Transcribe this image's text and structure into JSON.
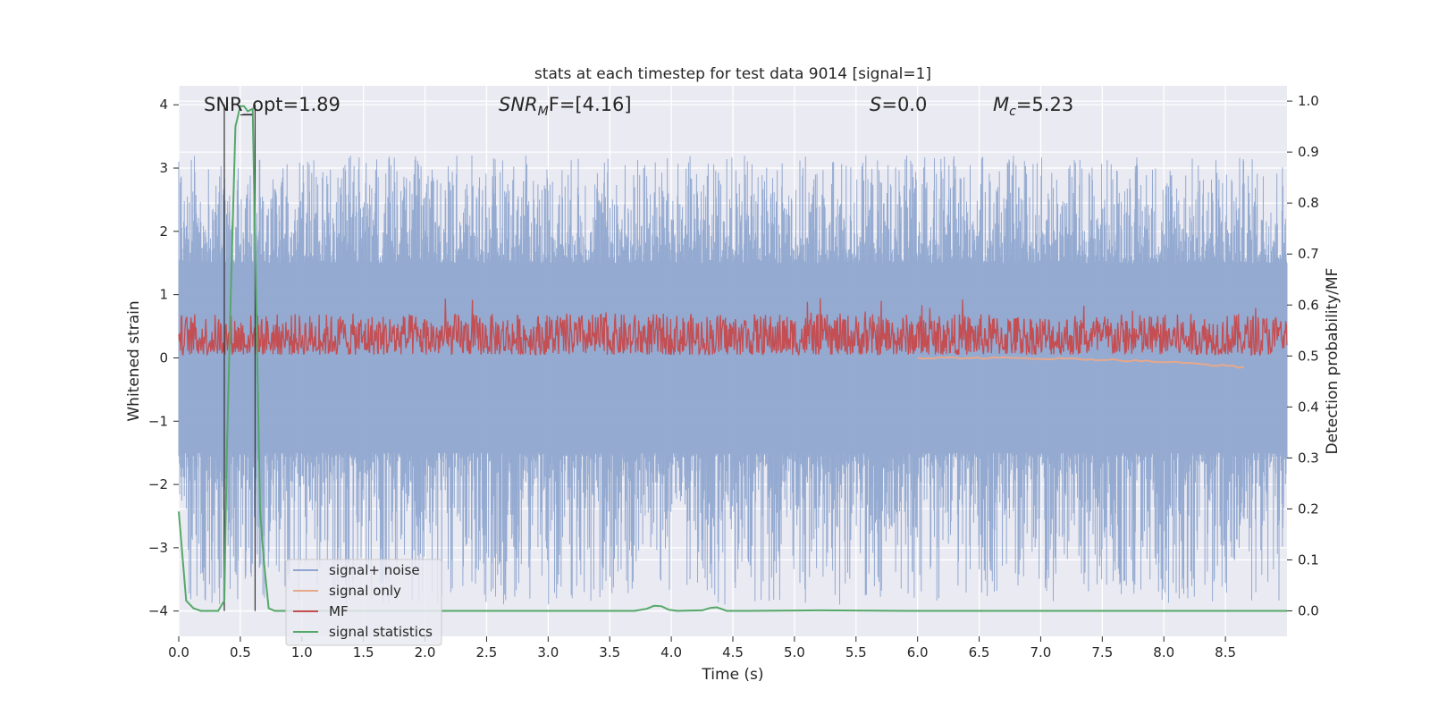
{
  "chart_data": {
    "type": "line",
    "title": "stats at each timestep for test data 9014 [signal=1]",
    "xlabel": "Time (s)",
    "ylabel": "Whitened strain",
    "ylabel_right": "Detection probability/MF",
    "xlim": [
      0.0,
      9.0
    ],
    "ylim_left": [
      -4.4,
      4.3
    ],
    "ylim_right": [
      -0.05,
      1.03
    ],
    "x_ticks": [
      "0.0",
      "0.5",
      "1.0",
      "1.5",
      "2.0",
      "2.5",
      "3.0",
      "3.5",
      "4.0",
      "4.5",
      "5.0",
      "5.5",
      "6.0",
      "6.5",
      "7.0",
      "7.5",
      "8.0",
      "8.5"
    ],
    "y_ticks_left": [
      "4",
      "3",
      "2",
      "1",
      "0",
      "−1",
      "−2",
      "−3",
      "−4"
    ],
    "y_ticks_right": [
      "1.0",
      "0.9",
      "0.8",
      "0.7",
      "0.6",
      "0.5",
      "0.4",
      "0.3",
      "0.2",
      "0.1",
      "0.0"
    ],
    "grid": true,
    "legend_position": "lower-left",
    "annotations": [
      {
        "label": "SNR_opt=1.89"
      },
      {
        "prefix": "SNR",
        "sub": "M",
        "suffix": "F=[4.16]"
      },
      {
        "prefix": "S",
        "suffix": "=0.0"
      },
      {
        "prefix": "M",
        "sub": "c",
        "suffix": "=5.23"
      }
    ],
    "series": [
      {
        "name": "signal+ noise",
        "color": "#8fa6cf",
        "axis": "left",
        "style": "noise",
        "envelope_high": [
          1.5,
          3.2
        ],
        "envelope_low": [
          -1.5,
          -3.9
        ]
      },
      {
        "name": "signal only",
        "color": "#e8a88a",
        "axis": "left",
        "x_start": 6.0,
        "x_end": 8.65,
        "y": [
          0.0,
          -0.15
        ]
      },
      {
        "name": "MF",
        "color": "#c44e52",
        "axis": "left",
        "style": "noise",
        "band": [
          0.0,
          1.0
        ]
      },
      {
        "name": "signal statistics",
        "color": "#55a868",
        "axis": "right",
        "x": [
          0.0,
          0.06,
          0.12,
          0.18,
          0.25,
          0.32,
          0.37,
          0.39,
          0.42,
          0.46,
          0.5,
          0.53,
          0.56,
          0.6,
          0.63,
          0.66,
          0.69,
          0.73,
          0.78,
          1.0,
          2.0,
          3.0,
          3.7,
          3.8,
          3.86,
          3.92,
          3.98,
          4.05,
          4.25,
          4.32,
          4.37,
          4.45,
          4.6,
          5.2,
          6.0,
          9.0
        ],
        "y": [
          0.195,
          0.02,
          0.005,
          0.0,
          0.0,
          0.0,
          0.02,
          0.3,
          0.6,
          0.95,
          0.99,
          0.99,
          0.98,
          0.985,
          0.6,
          0.2,
          0.1,
          0.005,
          0.0,
          0.0,
          0.0,
          0.0,
          0.0,
          0.004,
          0.01,
          0.009,
          0.002,
          0.0,
          0.001,
          0.006,
          0.007,
          0.0,
          0.0,
          0.001,
          0.0,
          0.0
        ]
      }
    ],
    "vertical_markers": [
      0.37,
      0.62
    ],
    "marker_color": "#333333"
  }
}
